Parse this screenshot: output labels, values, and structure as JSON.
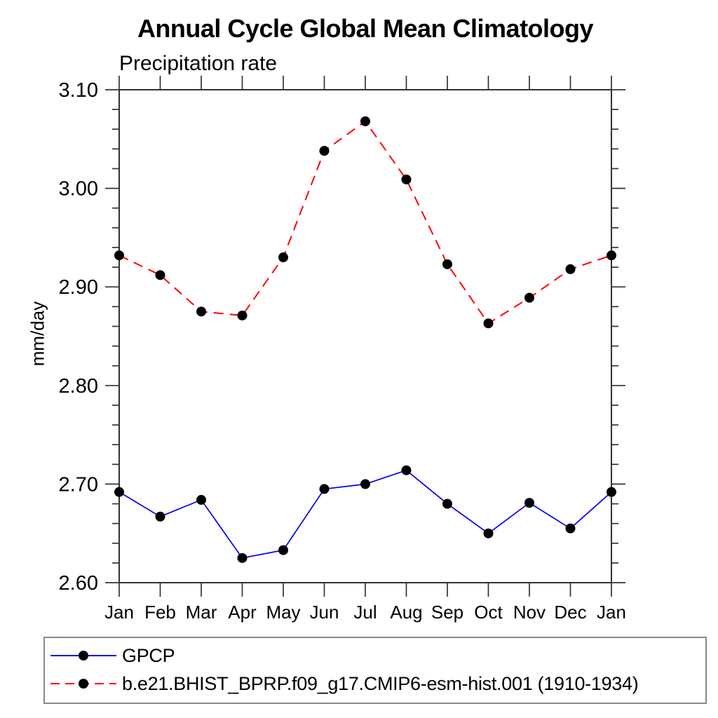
{
  "title": "Annual Cycle Global Mean Climatology",
  "subtitle": "Precipitation rate",
  "ylabel": "mm/day",
  "legend": {
    "items": [
      {
        "label": "GPCP",
        "color": "#0000ee",
        "style": "solid"
      },
      {
        "label": "b.e21.BHIST_BPRP.f09_g17.CMIP6-esm-hist.001 (1910-1934)",
        "color": "#ff0000",
        "style": "dashed"
      }
    ],
    "marker_color": "#000000"
  },
  "chart_data": {
    "type": "line",
    "title": "Annual Cycle Global Mean Climatology",
    "subtitle": "Precipitation rate",
    "xlabel": "",
    "ylabel": "mm/day",
    "categories": [
      "Jan",
      "Feb",
      "Mar",
      "Apr",
      "May",
      "Jun",
      "Jul",
      "Aug",
      "Sep",
      "Oct",
      "Nov",
      "Dec",
      "Jan"
    ],
    "series": [
      {
        "name": "GPCP",
        "color": "#0000ee",
        "dash": "solid",
        "marker": "circle",
        "values": [
          2.692,
          2.667,
          2.684,
          2.625,
          2.633,
          2.695,
          2.7,
          2.714,
          2.68,
          2.65,
          2.681,
          2.655,
          2.692
        ]
      },
      {
        "name": "b.e21.BHIST_BPRP.f09_g17.CMIP6-esm-hist.001 (1910-1934)",
        "color": "#ff0000",
        "dash": "dashed",
        "marker": "circle",
        "values": [
          2.932,
          2.912,
          2.875,
          2.871,
          2.93,
          3.038,
          3.068,
          3.009,
          2.923,
          2.863,
          2.889,
          2.918,
          2.932
        ]
      }
    ],
    "ylim": [
      2.6,
      3.1
    ],
    "ytick_major": 0.1,
    "ytick_minor": 0.02,
    "ytick_labels": [
      "2.60",
      "2.70",
      "2.80",
      "2.90",
      "3.00",
      "3.10"
    ],
    "grid": false,
    "legend_position": "bottom",
    "marker_color": "#000000"
  }
}
